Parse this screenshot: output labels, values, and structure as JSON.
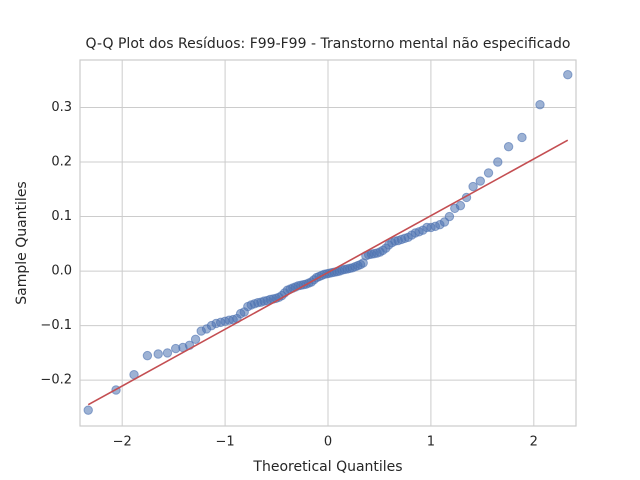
{
  "chart_data": {
    "type": "scatter",
    "title": "Q-Q Plot dos Resíduos: F99-F99 - Transtorno mental não especificado",
    "x_label": "Theoretical Quantiles",
    "y_label": "Sample Quantiles",
    "xlim": [
      -2.41,
      2.41
    ],
    "ylim": [
      -0.284,
      0.387
    ],
    "xticks": [
      {
        "value": -2,
        "label": "−2"
      },
      {
        "value": -1,
        "label": "−1"
      },
      0,
      1,
      2
    ],
    "yticks": [
      {
        "value": -0.2,
        "label": "−0.2"
      },
      {
        "value": -0.1,
        "label": "−0.1"
      },
      {
        "value": 0,
        "label": "0.0"
      },
      0.1,
      0.2,
      0.3
    ],
    "grid": true,
    "series": [
      {
        "mode": "markers",
        "color": "#4c72b0",
        "x": [
          -2.33,
          -2.06,
          -1.885,
          -1.755,
          -1.65,
          -1.56,
          -1.48,
          -1.41,
          -1.346,
          -1.287,
          -1.232,
          -1.18,
          -1.132,
          -1.087,
          -1.043,
          -1.001,
          -0.961,
          -0.922,
          -0.885,
          -0.849,
          -0.814,
          -0.779,
          -0.746,
          -0.714,
          -0.682,
          -0.651,
          -0.621,
          -0.591,
          -0.562,
          -0.533,
          -0.505,
          -0.477,
          -0.449,
          -0.422,
          -0.395,
          -0.368,
          -0.342,
          -0.316,
          -0.29,
          -0.264,
          -0.238,
          -0.213,
          -0.187,
          -0.162,
          -0.137,
          -0.112,
          -0.087,
          -0.062,
          -0.037,
          -0.012,
          0.012,
          0.037,
          0.062,
          0.087,
          0.112,
          0.137,
          0.162,
          0.187,
          0.213,
          0.238,
          0.264,
          0.29,
          0.316,
          0.342,
          0.368,
          0.395,
          0.422,
          0.449,
          0.477,
          0.505,
          0.533,
          0.562,
          0.591,
          0.621,
          0.651,
          0.682,
          0.714,
          0.746,
          0.779,
          0.814,
          0.849,
          0.885,
          0.922,
          0.961,
          1.001,
          1.043,
          1.087,
          1.132,
          1.18,
          1.232,
          1.287,
          1.346,
          1.41,
          1.48,
          1.56,
          1.65,
          1.755,
          1.885,
          2.06,
          2.33
        ],
        "values": [
          -0.255,
          -0.218,
          -0.19,
          -0.155,
          -0.152,
          -0.15,
          -0.142,
          -0.14,
          -0.136,
          -0.125,
          -0.11,
          -0.106,
          -0.1,
          -0.096,
          -0.094,
          -0.092,
          -0.09,
          -0.089,
          -0.087,
          -0.078,
          -0.075,
          -0.065,
          -0.062,
          -0.06,
          -0.058,
          -0.057,
          -0.055,
          -0.054,
          -0.052,
          -0.051,
          -0.05,
          -0.048,
          -0.045,
          -0.04,
          -0.035,
          -0.033,
          -0.031,
          -0.029,
          -0.027,
          -0.026,
          -0.025,
          -0.024,
          -0.022,
          -0.02,
          -0.016,
          -0.012,
          -0.01,
          -0.008,
          -0.006,
          -0.005,
          -0.004,
          -0.003,
          -0.002,
          -0.001,
          0.0,
          0.002,
          0.003,
          0.004,
          0.005,
          0.006,
          0.008,
          0.01,
          0.012,
          0.015,
          0.028,
          0.03,
          0.031,
          0.032,
          0.033,
          0.035,
          0.038,
          0.042,
          0.048,
          0.052,
          0.055,
          0.056,
          0.058,
          0.06,
          0.062,
          0.066,
          0.07,
          0.072,
          0.075,
          0.08,
          0.08,
          0.082,
          0.085,
          0.09,
          0.1,
          0.115,
          0.12,
          0.135,
          0.155,
          0.165,
          0.18,
          0.2,
          0.228,
          0.245,
          0.305,
          0.36
        ]
      },
      {
        "mode": "line",
        "color": "#c44e52",
        "x": [
          -2.33,
          2.33
        ],
        "values": [
          -0.245,
          0.24
        ]
      }
    ]
  }
}
